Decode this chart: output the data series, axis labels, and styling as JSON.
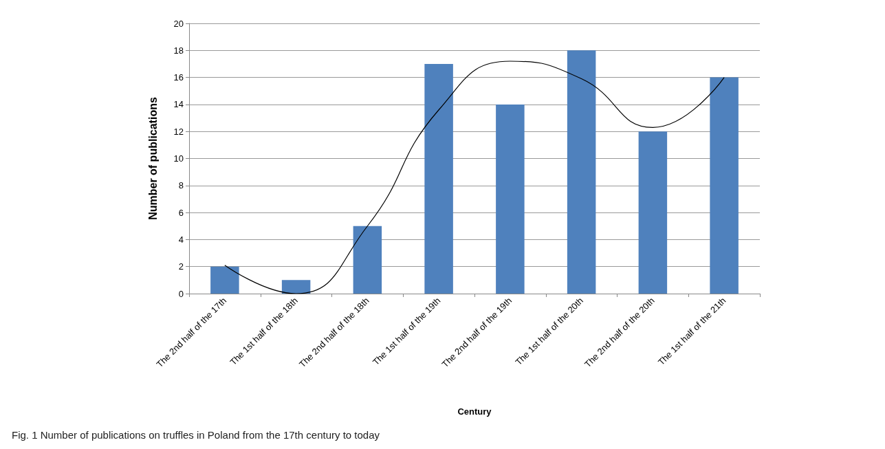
{
  "chart_data": {
    "type": "bar",
    "title": "Fig. 1 Number of publications on truffles in Poland from the 17th century to today",
    "xlabel": "Century",
    "ylabel": "Number of publications",
    "categories": [
      "The 2nd half of the 17th",
      "The 1st half of the 18th",
      "The 2nd half of the 18th",
      "The 1st half of the 19th",
      "The 2nd half of the 19th",
      "The 1st half of the 20th",
      "The 2nd half of the 20th",
      "The 1st half of the 21th"
    ],
    "series": [
      {
        "color": "#4f81bd",
        "values": [
          2,
          1,
          5,
          17,
          14,
          18,
          12,
          16
        ]
      },
      {
        "type": "line",
        "color": "#000000",
        "x": [
          "The 2nd half of the 17th",
          "The 1st half of the 18th",
          "The 2nd half of the 18th",
          "The 1st half of the 19th",
          "The 2nd half of the 19th",
          "The 1st half of the 20th",
          "The 2nd half of the 20th",
          "The 1st half of the 21th"
        ],
        "values": [
          2.1,
          0,
          5,
          13.6,
          17.2,
          15.9,
          12.3,
          16
        ]
      }
    ],
    "ylim": [
      0,
      20
    ],
    "yticks": [
      0,
      2,
      4,
      6,
      8,
      10,
      12,
      14,
      16,
      18,
      20
    ],
    "grid": "y",
    "marker": "none",
    "line_style": "solid"
  }
}
